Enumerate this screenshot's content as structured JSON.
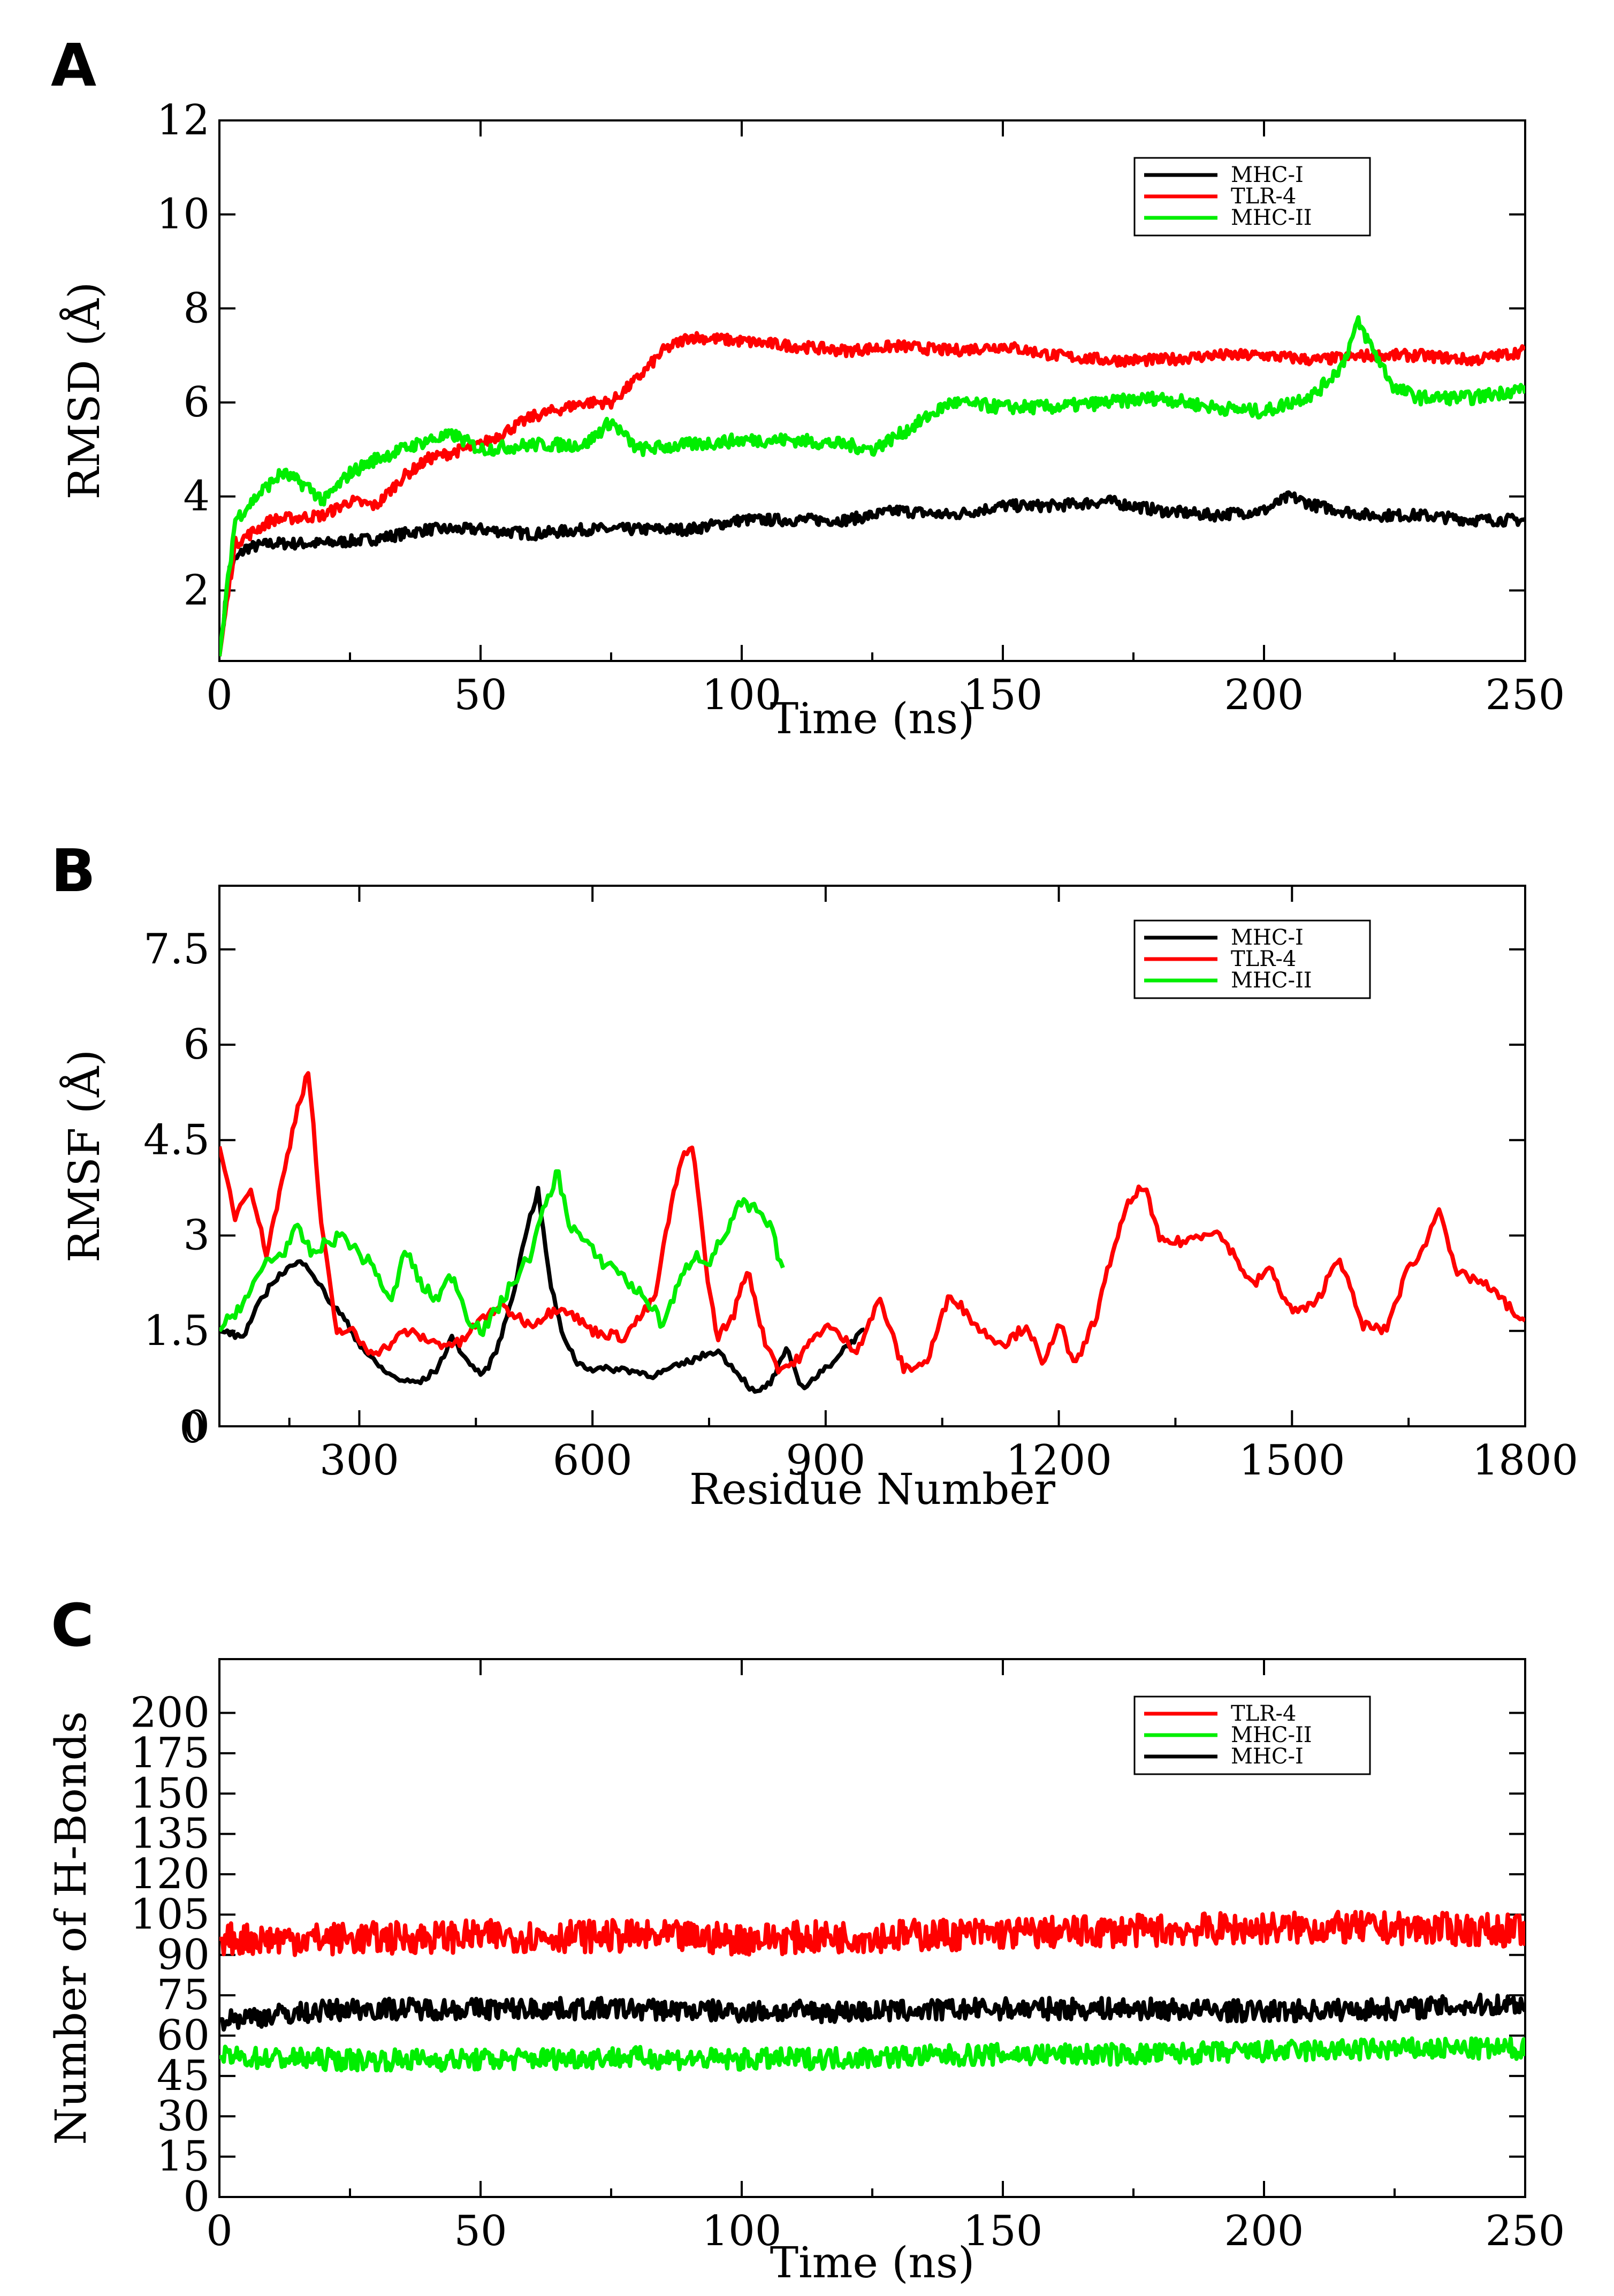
{
  "chart_data": [
    {
      "panel": "A",
      "type": "line",
      "title": "",
      "xlabel": "Time (ns)",
      "ylabel": "RMSD (Å)",
      "xlim": [
        0,
        250
      ],
      "ylim": [
        0.5,
        12
      ],
      "xticks": [
        0,
        50,
        100,
        150,
        200,
        250
      ],
      "yticks": [
        2,
        4,
        6,
        8,
        10,
        12
      ],
      "grid": false,
      "legend_position": "top-right",
      "series": [
        {
          "name": "MHC-I",
          "color": "#000000",
          "noise": 0.12,
          "x": [
            0,
            2,
            5,
            10,
            20,
            30,
            40,
            50,
            60,
            70,
            80,
            90,
            100,
            110,
            120,
            130,
            140,
            150,
            160,
            170,
            180,
            190,
            200,
            205,
            210,
            220,
            230,
            240,
            250
          ],
          "y": [
            0.6,
            2.5,
            2.9,
            3.0,
            3.0,
            3.1,
            3.3,
            3.3,
            3.2,
            3.3,
            3.3,
            3.3,
            3.5,
            3.5,
            3.5,
            3.7,
            3.6,
            3.8,
            3.8,
            3.9,
            3.7,
            3.6,
            3.7,
            4.0,
            3.8,
            3.6,
            3.6,
            3.5,
            3.5
          ]
        },
        {
          "name": "TLR-4",
          "color": "#ff0000",
          "noise": 0.12,
          "x": [
            0,
            3,
            10,
            20,
            25,
            30,
            35,
            40,
            50,
            60,
            70,
            75,
            80,
            85,
            90,
            100,
            110,
            120,
            130,
            140,
            150,
            160,
            170,
            180,
            190,
            200,
            210,
            220,
            230,
            240,
            250
          ],
          "y": [
            0.6,
            3.0,
            3.5,
            3.6,
            3.9,
            3.8,
            4.4,
            4.8,
            5.1,
            5.7,
            6.0,
            6.0,
            6.5,
            7.1,
            7.4,
            7.3,
            7.2,
            7.1,
            7.2,
            7.1,
            7.2,
            7.0,
            6.9,
            6.9,
            7.0,
            7.0,
            6.9,
            7.0,
            7.0,
            6.9,
            7.1
          ]
        },
        {
          "name": "MHC-II",
          "color": "#00ee00",
          "noise": 0.14,
          "x": [
            0,
            3,
            8,
            12,
            17,
            20,
            25,
            30,
            35,
            40,
            45,
            50,
            60,
            70,
            75,
            80,
            90,
            100,
            110,
            120,
            125,
            130,
            140,
            150,
            160,
            170,
            180,
            190,
            200,
            205,
            210,
            215,
            218,
            222,
            225,
            230,
            240,
            250
          ],
          "y": [
            0.6,
            3.5,
            4.1,
            4.5,
            4.2,
            3.9,
            4.5,
            4.8,
            5.0,
            5.2,
            5.3,
            5.0,
            5.1,
            5.1,
            5.6,
            5.0,
            5.1,
            5.2,
            5.2,
            5.1,
            5.0,
            5.3,
            6.0,
            5.9,
            5.9,
            6.0,
            6.1,
            5.9,
            5.8,
            6.0,
            6.2,
            6.8,
            7.7,
            6.9,
            6.3,
            6.1,
            6.1,
            6.3
          ]
        }
      ]
    },
    {
      "panel": "B",
      "type": "line",
      "title": "",
      "xlabel": "Residue Number",
      "ylabel": "RMSF (Å)",
      "xlim": [
        120,
        1800
      ],
      "ylim": [
        0,
        8.5
      ],
      "xticks": [
        300,
        600,
        900,
        1200,
        1500,
        1800
      ],
      "xtick_labels_extra": [
        "0"
      ],
      "yticks": [
        0,
        1.5,
        3,
        4.5,
        6,
        7.5
      ],
      "grid": false,
      "legend_position": "top-right",
      "series": [
        {
          "name": "MHC-I",
          "color": "#000000",
          "noise": 0.05,
          "x": [
            120,
            150,
            170,
            190,
            210,
            230,
            245,
            260,
            280,
            300,
            320,
            340,
            360,
            380,
            400,
            420,
            440,
            460,
            480,
            500,
            515,
            530,
            545,
            560,
            580,
            600,
            640,
            680,
            720,
            760,
            790,
            810,
            830,
            850,
            870,
            900,
            930,
            950
          ],
          "y": [
            1.5,
            1.4,
            1.9,
            2.3,
            2.5,
            2.6,
            2.3,
            2.0,
            1.7,
            1.3,
            1.0,
            0.8,
            0.7,
            0.7,
            0.9,
            1.4,
            1.0,
            0.8,
            1.3,
            2.2,
            3.1,
            3.7,
            2.3,
            1.5,
            1.0,
            0.9,
            0.9,
            0.8,
            1.0,
            1.2,
            0.8,
            0.5,
            0.7,
            1.2,
            0.6,
            0.9,
            1.3,
            1.5
          ]
        },
        {
          "name": "TLR-4",
          "color": "#ff0000",
          "noise": 0.08,
          "x": [
            120,
            140,
            160,
            180,
            200,
            220,
            235,
            250,
            270,
            290,
            310,
            330,
            360,
            400,
            430,
            450,
            480,
            520,
            560,
            600,
            640,
            680,
            700,
            715,
            730,
            745,
            760,
            780,
            800,
            820,
            840,
            860,
            900,
            940,
            970,
            1000,
            1030,
            1060,
            1100,
            1130,
            1160,
            1180,
            1200,
            1220,
            1250,
            1270,
            1290,
            1310,
            1330,
            1360,
            1400,
            1420,
            1450,
            1470,
            1500,
            1530,
            1560,
            1590,
            1620,
            1650,
            1670,
            1690,
            1710,
            1740,
            1770,
            1800
          ],
          "y": [
            4.4,
            3.3,
            3.8,
            2.7,
            3.8,
            5.0,
            5.6,
            3.3,
            1.5,
            1.5,
            1.2,
            1.2,
            1.5,
            1.3,
            1.3,
            1.6,
            1.9,
            1.6,
            1.9,
            1.5,
            1.4,
            2.0,
            3.4,
            4.2,
            4.4,
            2.6,
            1.4,
            1.7,
            2.5,
            1.4,
            0.9,
            1.0,
            1.6,
            1.2,
            2.0,
            0.9,
            1.0,
            2.1,
            1.5,
            1.3,
            1.6,
            0.9,
            1.7,
            0.9,
            1.8,
            2.8,
            3.5,
            3.8,
            2.9,
            2.9,
            3.1,
            2.8,
            2.2,
            2.5,
            1.8,
            1.9,
            2.7,
            1.6,
            1.5,
            2.5,
            2.8,
            3.5,
            2.4,
            2.3,
            2.0,
            1.6
          ]
        },
        {
          "name": "MHC-II",
          "color": "#00ee00",
          "noise": 0.1,
          "x": [
            120,
            140,
            160,
            180,
            200,
            220,
            240,
            260,
            280,
            300,
            320,
            340,
            360,
            380,
            400,
            420,
            440,
            460,
            480,
            500,
            520,
            540,
            555,
            570,
            590,
            610,
            630,
            650,
            670,
            690,
            710,
            730,
            750,
            770,
            790,
            810,
            830,
            845
          ],
          "y": [
            1.5,
            1.8,
            2.1,
            2.6,
            2.7,
            3.1,
            2.7,
            2.9,
            3.0,
            2.7,
            2.5,
            1.9,
            2.8,
            2.2,
            2.0,
            2.4,
            1.7,
            1.5,
            1.9,
            2.3,
            2.7,
            3.5,
            4.0,
            3.2,
            2.9,
            2.6,
            2.5,
            2.2,
            2.0,
            1.6,
            2.2,
            2.7,
            2.6,
            3.0,
            3.5,
            3.4,
            3.1,
            2.4
          ]
        }
      ]
    },
    {
      "panel": "C",
      "type": "line",
      "title": "",
      "xlabel": "Time (ns)",
      "ylabel": "Number of H-Bonds",
      "xlim": [
        0,
        250
      ],
      "ylim": [
        0,
        200
      ],
      "xticks": [
        0,
        50,
        100,
        150,
        200,
        250
      ],
      "yticks": [
        0,
        15,
        30,
        45,
        60,
        75,
        90,
        105,
        120,
        135,
        150,
        175,
        200
      ],
      "ytick_positions": [
        0,
        15,
        30,
        45,
        60,
        75,
        90,
        105,
        120,
        135,
        150,
        165,
        180
      ],
      "grid": false,
      "legend_position": "top-right",
      "series": [
        {
          "name": "TLR-4",
          "color": "#ff0000",
          "noise": 6,
          "x": [
            0,
            25,
            50,
            75,
            100,
            125,
            150,
            175,
            200,
            225,
            250
          ],
          "y": [
            96,
            96,
            97,
            97,
            96,
            97,
            98,
            99,
            100,
            100,
            99
          ]
        },
        {
          "name": "MHC-II",
          "color": "#00ee00",
          "noise": 4,
          "x": [
            0,
            25,
            50,
            75,
            100,
            125,
            150,
            175,
            200,
            225,
            250
          ],
          "y": [
            52,
            51,
            51,
            52,
            51,
            52,
            53,
            53,
            54,
            55,
            55
          ]
        },
        {
          "name": "MHC-I",
          "color": "#000000",
          "noise": 4,
          "x": [
            0,
            25,
            50,
            75,
            100,
            125,
            150,
            175,
            200,
            225,
            250
          ],
          "y": [
            66,
            70,
            70,
            70,
            69,
            69,
            70,
            70,
            69,
            70,
            72
          ]
        }
      ]
    }
  ]
}
